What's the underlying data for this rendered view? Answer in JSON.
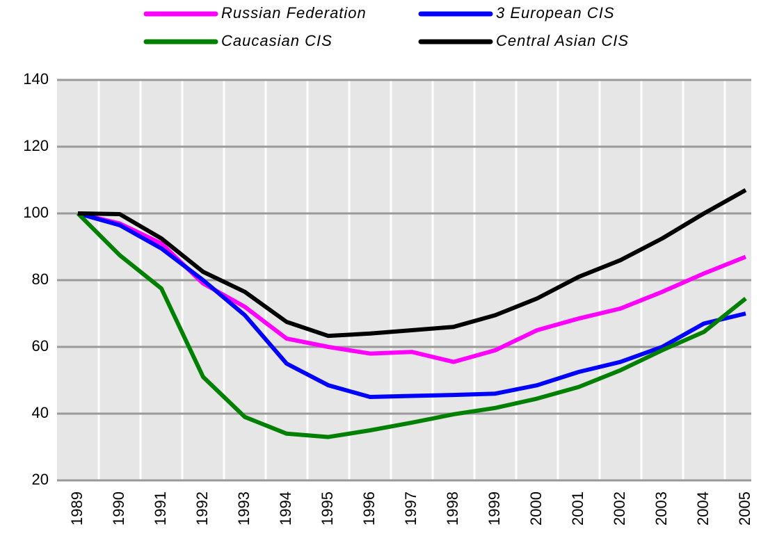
{
  "chart_data": {
    "type": "line",
    "categories": [
      "1989",
      "1990",
      "1991",
      "1992",
      "1993",
      "1994",
      "1995",
      "1996",
      "1997",
      "1998",
      "1999",
      "2000",
      "2001",
      "2002",
      "2003",
      "2004",
      "2005"
    ],
    "series": [
      {
        "name": "Russian Federation",
        "color": "#ff00ff",
        "values": [
          100,
          97,
          91,
          79,
          72,
          62.5,
          60,
          58,
          58.5,
          55.5,
          59,
          65,
          68.5,
          71.5,
          76.5,
          82,
          87
        ]
      },
      {
        "name": "3 European CIS",
        "color": "#0000ff",
        "values": [
          100,
          96.5,
          89.5,
          80,
          69.5,
          55,
          48.5,
          45,
          45.3,
          45.6,
          46,
          48.5,
          52.5,
          55.5,
          60,
          67,
          70
        ]
      },
      {
        "name": "Caucasian CIS",
        "color": "#008000",
        "values": [
          100,
          87.5,
          77.5,
          51,
          39,
          34,
          33,
          35,
          37.3,
          39.8,
          41.7,
          44.5,
          48,
          53,
          59,
          64.5,
          74.5
        ]
      },
      {
        "name": "Central Asian CIS",
        "color": "#000000",
        "values": [
          100,
          99.8,
          92.5,
          82.5,
          76.5,
          67.5,
          63.3,
          64,
          65,
          66,
          69.5,
          74.5,
          81,
          86,
          92.5,
          100,
          107
        ]
      }
    ],
    "ylim": [
      20,
      140
    ],
    "yticks": [
      20,
      40,
      60,
      80,
      100,
      120,
      140
    ],
    "grid": true,
    "legend": "top"
  }
}
